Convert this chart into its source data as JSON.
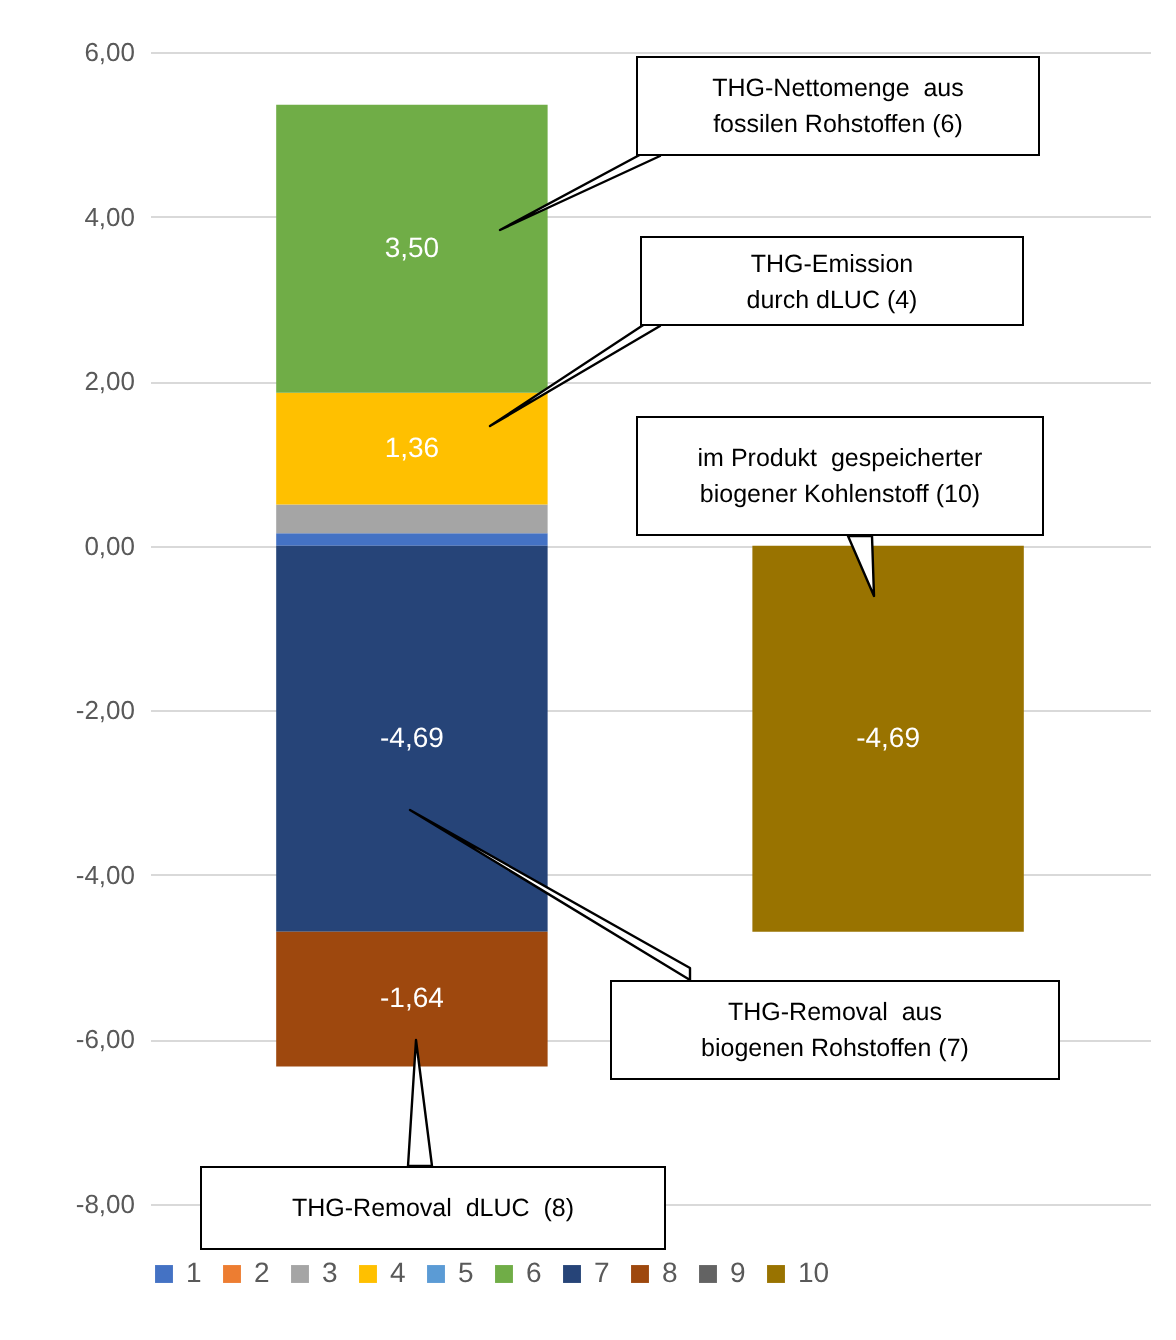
{
  "chart_data": {
    "type": "bar",
    "stacked": true,
    "categories": [
      null,
      null
    ],
    "series": [
      {
        "name": "1",
        "color": "#4472c4",
        "values": [
          0.15,
          null
        ]
      },
      {
        "name": "2",
        "color": "#ed7d31",
        "values": [
          0,
          null
        ]
      },
      {
        "name": "3",
        "color": "#a5a5a5",
        "values": [
          0.35,
          null
        ]
      },
      {
        "name": "4",
        "color": "#ffc000",
        "values": [
          1.36,
          null
        ],
        "value_labels": [
          "1,36",
          null
        ]
      },
      {
        "name": "5",
        "color": "#5b9bd5",
        "values": [
          0,
          null
        ]
      },
      {
        "name": "6",
        "color": "#70ad47",
        "values": [
          3.5,
          null
        ],
        "value_labels": [
          "3,50",
          null
        ]
      },
      {
        "name": "7",
        "color": "#264478",
        "values": [
          -4.69,
          null
        ],
        "value_labels": [
          "-4,69",
          null
        ]
      },
      {
        "name": "8",
        "color": "#9e480e",
        "values": [
          -1.64,
          null
        ],
        "value_labels": [
          "-1,64",
          null
        ]
      },
      {
        "name": "9",
        "color": "#636363",
        "values": [
          0,
          null
        ]
      },
      {
        "name": "10",
        "color": "#997300",
        "values": [
          null,
          -4.69
        ],
        "value_labels": [
          null,
          "-4,69"
        ]
      }
    ],
    "ylim": [
      -8,
      6
    ],
    "yticks": [
      {
        "value": -8,
        "label": "-8,00"
      },
      {
        "value": -6,
        "label": "-6,00"
      },
      {
        "value": -4,
        "label": "-4,00"
      },
      {
        "value": -2,
        "label": "-2,00"
      },
      {
        "value": 0,
        "label": "0,00"
      },
      {
        "value": 2,
        "label": "2,00"
      },
      {
        "value": 4,
        "label": "4,00"
      },
      {
        "value": 6,
        "label": "6,00"
      }
    ],
    "grid": "y",
    "legend": "bottom",
    "tick_labels": "y",
    "annotations": [
      "THG-Nettomenge  aus\nfossilen Rohstoffen (6)",
      "THG-Emission\ndurch dLUC (4)",
      "im Produkt  gespeicherter\nbiogener Kohlenstoff (10)",
      "THG-Removal  aus\nbiogenen Rohstoffen (7)",
      "THG-Removal  dLUC  (8)"
    ]
  }
}
